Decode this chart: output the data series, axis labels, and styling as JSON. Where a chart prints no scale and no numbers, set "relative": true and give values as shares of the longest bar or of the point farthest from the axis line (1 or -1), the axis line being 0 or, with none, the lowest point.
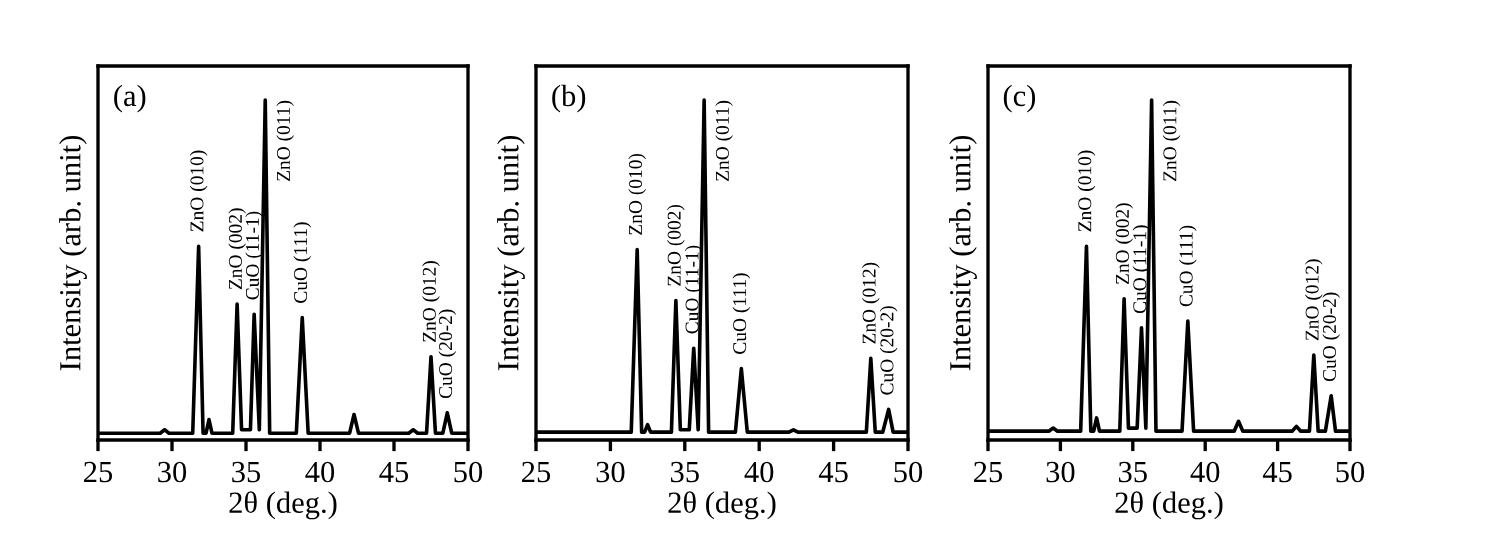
{
  "chart_data": [
    {
      "type": "line",
      "relative": true,
      "xlabel": "2θ (deg.)",
      "ylabel": "Intensity (arb. unit)",
      "xlim": [
        25,
        50
      ],
      "xticks": [
        25,
        30,
        35,
        40,
        45,
        50
      ],
      "tick_labels": "x",
      "grid": false,
      "marker": "none",
      "line_style": "solid",
      "x": [
        25,
        29.2,
        29.5,
        29.8,
        31.4,
        31.8,
        32.1,
        32.3,
        32.5,
        32.7,
        34.1,
        34.4,
        34.7,
        35.3,
        35.55,
        35.9,
        36.3,
        36.6,
        38.4,
        38.8,
        39.2,
        42.0,
        42.3,
        42.6,
        46.0,
        46.3,
        46.6,
        47.2,
        47.5,
        47.8,
        48.3,
        48.6,
        48.9,
        50
      ],
      "series": [
        {
          "color": "#000000",
          "values": [
            0.02,
            0.02,
            0.03,
            0.02,
            0.02,
            0.57,
            0.02,
            0.02,
            0.06,
            0.02,
            0.02,
            0.4,
            0.03,
            0.03,
            0.37,
            0.03,
            1,
            0.02,
            0.02,
            0.36,
            0.02,
            0.02,
            0.075,
            0.02,
            0.02,
            0.03,
            0.02,
            0.02,
            0.245,
            0.02,
            0.02,
            0.08,
            0.02,
            0.02
          ]
        }
      ],
      "annotations": [
        "(a)",
        {
          "text": "ZnO (010)",
          "x": 31.8,
          "y": 0.57
        },
        {
          "text": "ZnO (002)",
          "x": 34.4,
          "y": 0.4
        },
        {
          "text": "CuO (11-1)",
          "x": 35.55,
          "y": 0.37
        },
        {
          "text": "ZnO (011)",
          "x": 36.3,
          "y": 1
        },
        {
          "text": "CuO (111)",
          "x": 38.8,
          "y": 0.36
        },
        {
          "text": "ZnO (012)",
          "x": 47.5,
          "y": 0.245
        },
        {
          "text": "CuO (20-2)",
          "x": 48.6,
          "y": 0.08
        }
      ]
    },
    {
      "type": "line",
      "relative": true,
      "xlabel": "2θ (deg.)",
      "ylabel": "Intensity (arb. unit)",
      "xlim": [
        25,
        50
      ],
      "xticks": [
        25,
        30,
        35,
        40,
        45,
        50
      ],
      "tick_labels": "x",
      "grid": false,
      "marker": "none",
      "line_style": "solid",
      "x": [
        25,
        31.4,
        31.8,
        32.1,
        32.3,
        32.5,
        32.7,
        34.1,
        34.4,
        34.7,
        35.3,
        35.6,
        35.9,
        36.3,
        36.6,
        38.4,
        38.8,
        39.2,
        42.0,
        42.3,
        42.6,
        47.2,
        47.5,
        47.8,
        48.3,
        48.7,
        49.0,
        50
      ],
      "series": [
        {
          "color": "#000000",
          "values": [
            0.023,
            0.023,
            0.56,
            0.023,
            0.023,
            0.045,
            0.023,
            0.023,
            0.41,
            0.03,
            0.03,
            0.27,
            0.03,
            1,
            0.023,
            0.023,
            0.21,
            0.023,
            0.023,
            0.03,
            0.023,
            0.023,
            0.24,
            0.023,
            0.023,
            0.09,
            0.023,
            0.023
          ]
        }
      ],
      "annotations": [
        "(b)",
        {
          "text": "ZnO (010)",
          "x": 31.8,
          "y": 0.56
        },
        {
          "text": "ZnO (002)",
          "x": 34.4,
          "y": 0.41
        },
        {
          "text": "CuO (11-1)",
          "x": 35.6,
          "y": 0.27
        },
        {
          "text": "ZnO (011)",
          "x": 36.3,
          "y": 1
        },
        {
          "text": "CuO (111)",
          "x": 38.8,
          "y": 0.21
        },
        {
          "text": "ZnO (012)",
          "x": 47.5,
          "y": 0.24
        },
        {
          "text": "CuO (20-2)",
          "x": 48.7,
          "y": 0.09
        }
      ]
    },
    {
      "type": "line",
      "relative": true,
      "xlabel": "2θ (deg.)",
      "ylabel": "Intensity (arb. unit)",
      "xlim": [
        25,
        50
      ],
      "xticks": [
        25,
        30,
        35,
        40,
        45,
        50
      ],
      "tick_labels": "x",
      "grid": false,
      "marker": "none",
      "line_style": "solid",
      "x": [
        25,
        29.2,
        29.5,
        29.8,
        31.4,
        31.8,
        32.1,
        32.3,
        32.5,
        32.7,
        34.1,
        34.4,
        34.7,
        35.3,
        35.6,
        35.9,
        36.3,
        36.6,
        38.4,
        38.8,
        39.2,
        42.0,
        42.3,
        42.6,
        46.0,
        46.3,
        46.6,
        47.2,
        47.5,
        47.8,
        48.3,
        48.7,
        49.0,
        50
      ],
      "series": [
        {
          "color": "#000000",
          "values": [
            0.026,
            0.026,
            0.035,
            0.026,
            0.026,
            0.57,
            0.026,
            0.026,
            0.065,
            0.026,
            0.026,
            0.415,
            0.035,
            0.035,
            0.33,
            0.035,
            1,
            0.026,
            0.026,
            0.35,
            0.026,
            0.026,
            0.055,
            0.026,
            0.026,
            0.04,
            0.026,
            0.026,
            0.25,
            0.026,
            0.026,
            0.13,
            0.026,
            0.026
          ]
        }
      ],
      "annotations": [
        "(c)",
        {
          "text": "ZnO (010)",
          "x": 31.8,
          "y": 0.57
        },
        {
          "text": "ZnO (002)",
          "x": 34.4,
          "y": 0.415
        },
        {
          "text": "CuO (11-1)",
          "x": 35.6,
          "y": 0.33
        },
        {
          "text": "ZnO (011)",
          "x": 36.3,
          "y": 1
        },
        {
          "text": "CuO (111)",
          "x": 38.8,
          "y": 0.35
        },
        {
          "text": "ZnO (012)",
          "x": 47.5,
          "y": 0.25
        },
        {
          "text": "CuO (20-2)",
          "x": 48.7,
          "y": 0.13
        }
      ]
    }
  ]
}
